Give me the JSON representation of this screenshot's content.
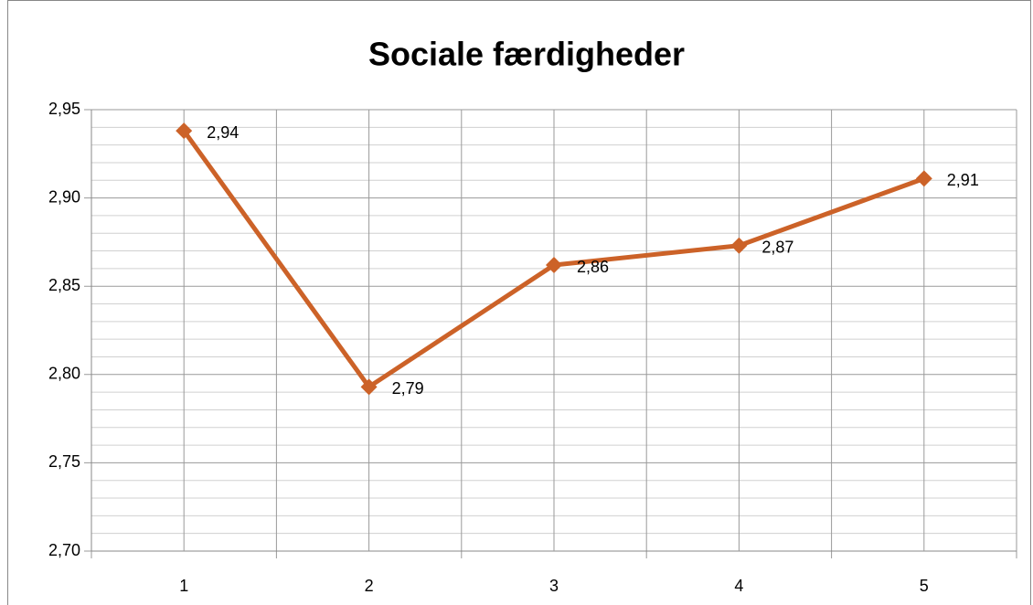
{
  "chart_data": {
    "type": "line",
    "title": "Sociale færdigheder",
    "categories": [
      "1",
      "2",
      "3",
      "4",
      "5"
    ],
    "series": [
      {
        "name": "Sociale færdigheder",
        "color": "#cc6228",
        "values": [
          2.938,
          2.793,
          2.862,
          2.873,
          2.911
        ],
        "value_labels": [
          "2,94",
          "2,79",
          "2,86",
          "2,87",
          "2,91"
        ]
      }
    ],
    "ylim": [
      2.7,
      2.95
    ],
    "yticks": [
      {
        "value": 2.7,
        "label": "2,70"
      },
      {
        "value": 2.75,
        "label": "2,75"
      },
      {
        "value": 2.8,
        "label": "2,80"
      },
      {
        "value": 2.85,
        "label": "2,85"
      },
      {
        "value": 2.9,
        "label": "2,90"
      },
      {
        "value": 2.95,
        "label": "2,95"
      }
    ],
    "yminorticks": [
      2.71,
      2.72,
      2.73,
      2.74,
      2.76,
      2.77,
      2.78,
      2.79,
      2.81,
      2.82,
      2.83,
      2.84,
      2.86,
      2.87,
      2.88,
      2.89,
      2.91,
      2.92,
      2.93,
      2.94
    ],
    "grid": true
  }
}
